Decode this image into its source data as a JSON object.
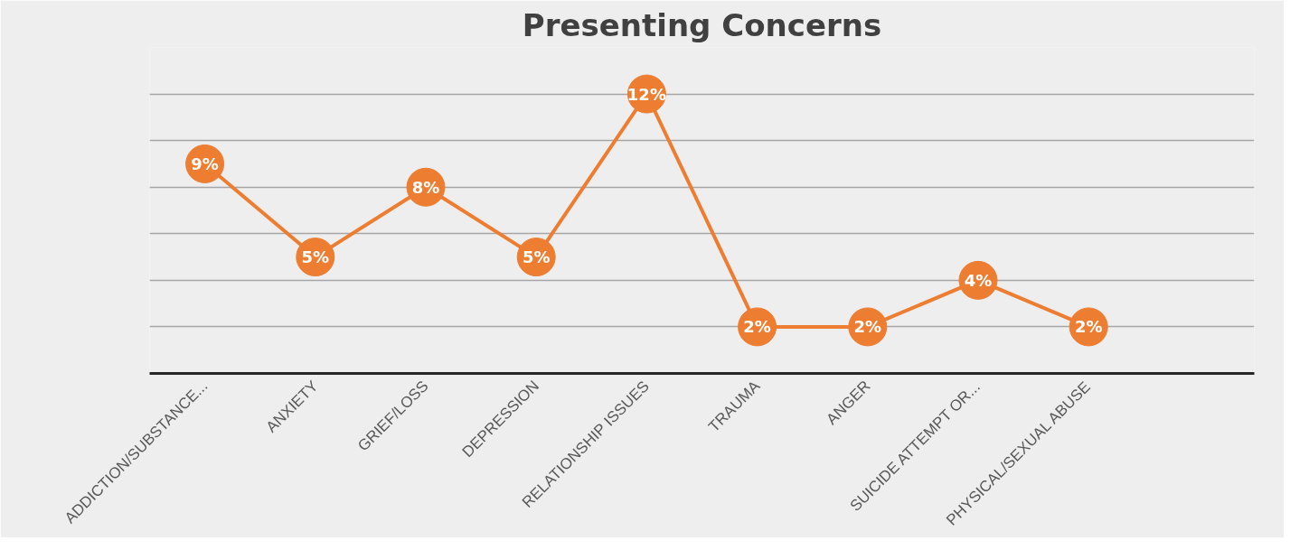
{
  "chart_data": {
    "type": "line",
    "title": "Presenting Concerns",
    "categories": [
      "ADDICTION/SUBSTANCE...",
      "ANXIETY",
      "GRIEF/LOSS",
      "DEPRESSION",
      "RELATIONSHIP ISSUES",
      "TRAUMA",
      "ANGER",
      "SUICIDE ATTEMPT OR...",
      "PHYSICAL/SEXUAL ABUSE"
    ],
    "series": [
      {
        "color": "#ed7d31",
        "values": [
          9,
          5,
          8,
          5,
          12,
          2,
          2,
          4,
          2
        ],
        "value_labels": [
          "9%",
          "5%",
          "8%",
          "5%",
          "12%",
          "2%",
          "2%",
          "4%",
          "2%"
        ]
      }
    ],
    "ylim": [
      0,
      14
    ],
    "yticks": [
      {
        "value": 0,
        "label": null
      },
      {
        "value": 2,
        "label": null
      },
      {
        "value": 4,
        "label": null
      },
      {
        "value": 6,
        "label": null
      },
      {
        "value": 8,
        "label": null
      },
      {
        "value": 10,
        "label": null
      },
      {
        "value": 12,
        "label": null
      },
      {
        "value": 14,
        "label": null
      }
    ],
    "tick_labels": "x",
    "grid": "y",
    "marker": "circle",
    "line_style": "solid"
  }
}
